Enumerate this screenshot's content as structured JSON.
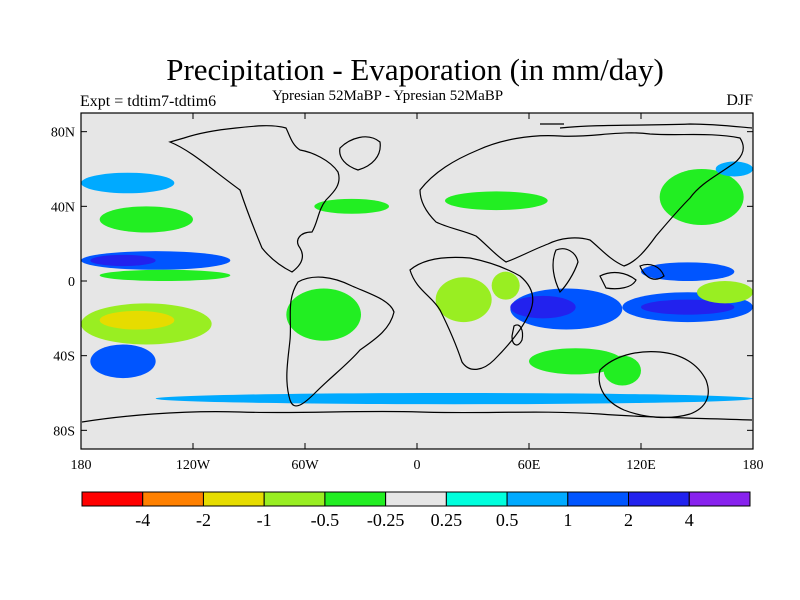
{
  "header": {
    "title": "Precipitation - Evaporation (in mm/day)",
    "experiment": "Expt = tdtim7-tdtim6",
    "subtitle": "Ypresian  52MaBP - Ypresian  52MaBP",
    "season": "DJF"
  },
  "axes": {
    "lat_ticks": [
      {
        "value": 80,
        "label": "80N"
      },
      {
        "value": 40,
        "label": "40N"
      },
      {
        "value": 0,
        "label": "0"
      },
      {
        "value": -40,
        "label": "40S"
      },
      {
        "value": -80,
        "label": "80S"
      }
    ],
    "lon_ticks": [
      {
        "value": -180,
        "label": "180"
      },
      {
        "value": -120,
        "label": "120W"
      },
      {
        "value": -60,
        "label": "60W"
      },
      {
        "value": 0,
        "label": "0"
      },
      {
        "value": 60,
        "label": "60E"
      },
      {
        "value": 120,
        "label": "120E"
      },
      {
        "value": 180,
        "label": "180"
      }
    ],
    "lon_range": [
      -180,
      180
    ],
    "lat_range": [
      -90,
      90
    ]
  },
  "colorbar": {
    "colors": [
      "#ff0000",
      "#ff8000",
      "#e6dc00",
      "#99ee22",
      "#22ee22",
      "#e6e6e6",
      "#00ffdd",
      "#00aaff",
      "#0055ff",
      "#2222ee",
      "#8822ee"
    ],
    "labels": [
      "-4",
      "-2",
      "-1",
      "-0.5",
      "-0.25",
      "0.25",
      "0.5",
      "1",
      "2",
      "4"
    ]
  },
  "chart_data": {
    "type": "heatmap",
    "title": "Precipitation - Evaporation (in mm/day)",
    "units": "mm/day",
    "levels": [
      -4,
      -2,
      -1,
      -0.5,
      -0.25,
      0.25,
      0.5,
      1,
      2,
      4
    ],
    "background_value": 0,
    "regions": [
      {
        "name": "n-pacific-north-band",
        "lon": [
          -180,
          -130
        ],
        "lat": [
          47,
          58
        ],
        "value": 0.5
      },
      {
        "name": "n-pacific-band",
        "lon": [
          -170,
          -120
        ],
        "lat": [
          26,
          40
        ],
        "value": -0.5
      },
      {
        "name": "n-atlantic-band",
        "lon": [
          -55,
          -15
        ],
        "lat": [
          36,
          44
        ],
        "value": -0.5
      },
      {
        "name": "europe-asia",
        "lon": [
          15,
          70
        ],
        "lat": [
          38,
          48
        ],
        "value": -0.5
      },
      {
        "name": "tropical-pacific-north",
        "lon": [
          -180,
          -100
        ],
        "lat": [
          6,
          16
        ],
        "value": 1
      },
      {
        "name": "tropical-pacific-core",
        "lon": [
          -175,
          -140
        ],
        "lat": [
          8,
          14
        ],
        "value": 2
      },
      {
        "name": "tropical-pacific-dry",
        "lon": [
          -170,
          -100
        ],
        "lat": [
          0,
          6
        ],
        "value": -0.5
      },
      {
        "name": "south-pacific-dry",
        "lon": [
          -180,
          -110
        ],
        "lat": [
          -34,
          -12
        ],
        "value": -1
      },
      {
        "name": "south-pacific-core",
        "lon": [
          -170,
          -130
        ],
        "lat": [
          -26,
          -16
        ],
        "value": -2
      },
      {
        "name": "south-pacific-wet",
        "lon": [
          -175,
          -140
        ],
        "lat": [
          -52,
          -34
        ],
        "value": 1
      },
      {
        "name": "s-america",
        "lon": [
          -70,
          -30
        ],
        "lat": [
          -32,
          -4
        ],
        "value": -0.5
      },
      {
        "name": "africa",
        "lon": [
          10,
          40
        ],
        "lat": [
          -22,
          2
        ],
        "value": -1
      },
      {
        "name": "arabia-eastafrica",
        "lon": [
          40,
          55
        ],
        "lat": [
          -10,
          5
        ],
        "value": -1
      },
      {
        "name": "indian-ocean",
        "lon": [
          50,
          110
        ],
        "lat": [
          -26,
          -4
        ],
        "value": 1
      },
      {
        "name": "indian-ocean-core",
        "lon": [
          50,
          85
        ],
        "lat": [
          -20,
          -8
        ],
        "value": 2
      },
      {
        "name": "s-indian-ocean",
        "lon": [
          60,
          110
        ],
        "lat": [
          -50,
          -36
        ],
        "value": -0.5
      },
      {
        "name": "australia",
        "lon": [
          100,
          120
        ],
        "lat": [
          -56,
          -40
        ],
        "value": -0.5
      },
      {
        "name": "w-pacific",
        "lon": [
          110,
          180
        ],
        "lat": [
          -22,
          -6
        ],
        "value": 1
      },
      {
        "name": "w-pacific-core",
        "lon": [
          120,
          170
        ],
        "lat": [
          -18,
          -10
        ],
        "value": 2
      },
      {
        "name": "nw-pacific",
        "lon": [
          120,
          170
        ],
        "lat": [
          0,
          10
        ],
        "value": 1
      },
      {
        "name": "nw-pacific-dry",
        "lon": [
          150,
          180
        ],
        "lat": [
          -12,
          0
        ],
        "value": -1
      },
      {
        "name": "nw-pacific-high",
        "lon": [
          130,
          175
        ],
        "lat": [
          30,
          60
        ],
        "value": -0.5
      },
      {
        "name": "nw-pacific-edge",
        "lon": [
          160,
          180
        ],
        "lat": [
          56,
          64
        ],
        "value": 0.5
      },
      {
        "name": "southern-ocean-band",
        "lon": [
          -140,
          180
        ],
        "lat": [
          -66,
          -60
        ],
        "value": 0.5
      }
    ]
  }
}
